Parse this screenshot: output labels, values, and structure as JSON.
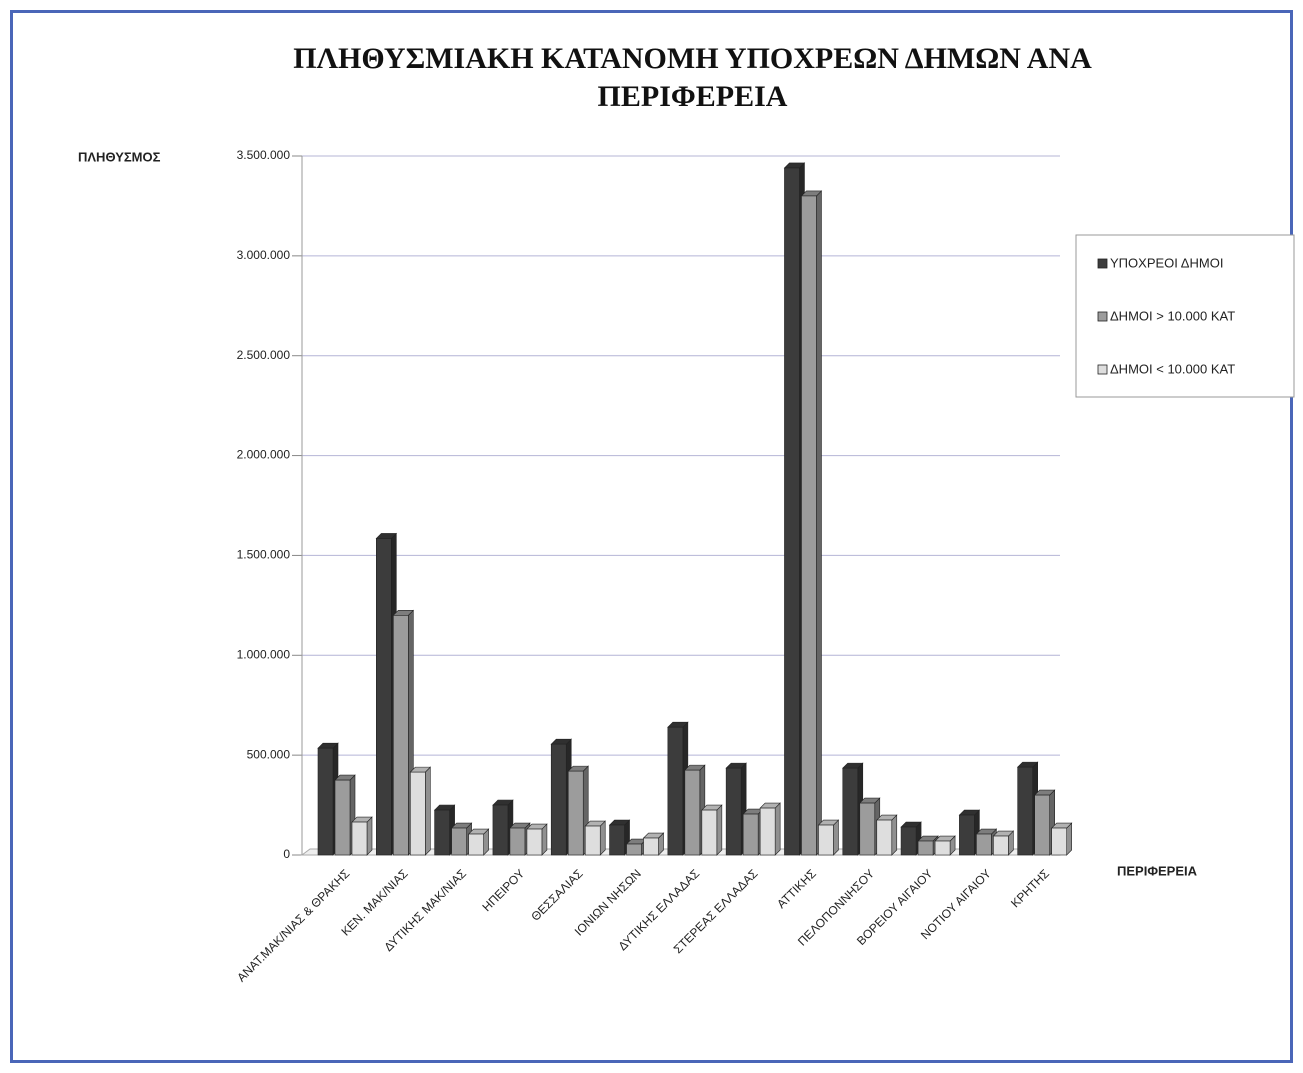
{
  "chart_data": {
    "type": "bar",
    "title": "ΠΛΗΘΥΣΜΙΑΚΗ ΚΑΤΑΝΟΜΗ ΥΠΟΧΡΕΩΝ ΔΗΜΩΝ ΑΝΑ ΠΕΡΙΦΕΡΕΙΑ",
    "y_label": "ΠΛΗΘΥΣΜΟΣ",
    "x_label": "ΠΕΡΙΦΕΡΕΙΑ",
    "categories": [
      "ΑΝΑΤ.ΜΑΚ/ΝΙΑΣ & ΘΡΑΚΗΣ",
      "ΚΕΝ. ΜΑΚ/ΝΙΑΣ",
      "ΔΥΤΙΚΗΣ ΜΑΚ/ΝΙΑΣ",
      "ΗΠΕΙΡΟΥ",
      "ΘΕΣΣΑΛΙΑΣ",
      "ΙΟΝΙΩΝ ΝΗΣΩΝ",
      "ΔΥΤΙΚΗΣ ΕΛΛΑΔΑΣ",
      "ΣΤΕΡΕΑΣ ΕΛΛΑΔΑΣ",
      "ΑΤΤΙΚΗΣ",
      "ΠΕΛΟΠΟΝΝΗΣΟΥ",
      "ΒΟΡΕΙΟΥ ΑΙΓΑΙΟΥ",
      "ΝΟΤΙΟΥ ΑΙΓΑΙΟΥ",
      "ΚΡΗΤΗΣ"
    ],
    "series": [
      {
        "name": "ΥΠΟΧΡΕΟΙ ΔΗΜΟΙ",
        "color": "#3c3c3c",
        "values": [
          535000,
          1585000,
          225000,
          250000,
          555000,
          150000,
          640000,
          435000,
          3440000,
          435000,
          140000,
          200000,
          440000
        ]
      },
      {
        "name": "ΔΗΜΟΙ > 10.000 ΚΑΤ",
        "color": "#9c9c9c",
        "values": [
          375000,
          1200000,
          135000,
          135000,
          420000,
          55000,
          425000,
          205000,
          3300000,
          260000,
          70000,
          105000,
          300000
        ]
      },
      {
        "name": "ΔΗΜΟΙ < 10.000 ΚΑΤ",
        "color": "#dedede",
        "values": [
          165000,
          415000,
          105000,
          130000,
          145000,
          85000,
          225000,
          235000,
          150000,
          175000,
          70000,
          95000,
          135000
        ]
      }
    ],
    "ylim": [
      0,
      3500000
    ],
    "yticks": [
      0,
      {
        "value": 500000,
        "label": "500.000"
      },
      {
        "value": 1000000,
        "label": "1.000.000"
      },
      {
        "value": 1500000,
        "label": "1.500.000"
      },
      {
        "value": 2000000,
        "label": "2.000.000"
      },
      {
        "value": 2500000,
        "label": "2.500.000"
      },
      {
        "value": 3000000,
        "label": "3.000.000"
      },
      {
        "value": 3500000,
        "label": "3.500.000"
      }
    ],
    "grid": true,
    "legend": "right"
  }
}
